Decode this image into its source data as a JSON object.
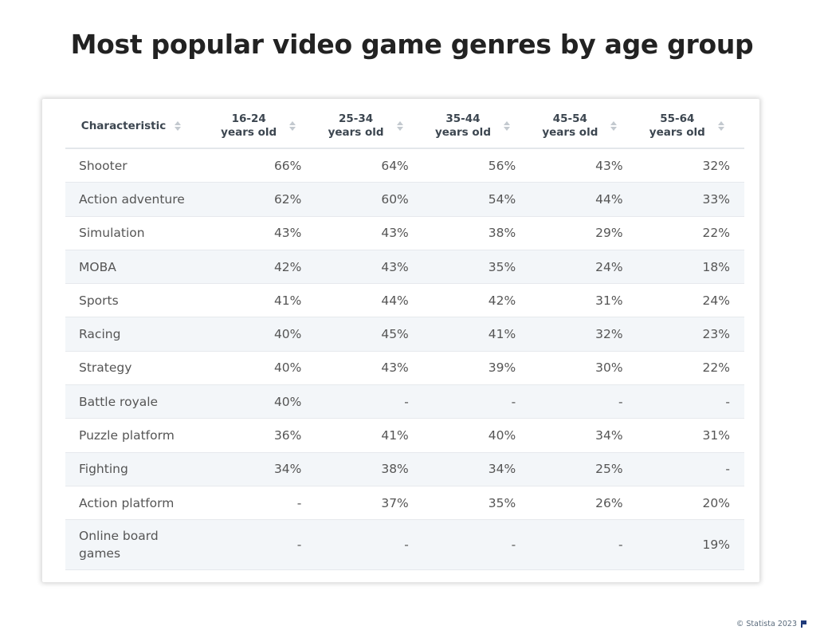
{
  "title": "Most popular video game genres by age group",
  "footer": "© Statista 2023",
  "chart_data": {
    "type": "table",
    "title": "Most popular video game genres by age group",
    "columns": [
      "Characteristic",
      "16-24 years old",
      "25-34 years old",
      "35-44 years old",
      "45-54 years old",
      "55-64 years old"
    ],
    "rows": [
      {
        "genre": "Shooter",
        "values": [
          "66%",
          "64%",
          "56%",
          "43%",
          "32%"
        ]
      },
      {
        "genre": "Action adventure",
        "values": [
          "62%",
          "60%",
          "54%",
          "44%",
          "33%"
        ]
      },
      {
        "genre": "Simulation",
        "values": [
          "43%",
          "43%",
          "38%",
          "29%",
          "22%"
        ]
      },
      {
        "genre": "MOBA",
        "values": [
          "42%",
          "43%",
          "35%",
          "24%",
          "18%"
        ]
      },
      {
        "genre": "Sports",
        "values": [
          "41%",
          "44%",
          "42%",
          "31%",
          "24%"
        ]
      },
      {
        "genre": "Racing",
        "values": [
          "40%",
          "45%",
          "41%",
          "32%",
          "23%"
        ]
      },
      {
        "genre": "Strategy",
        "values": [
          "40%",
          "43%",
          "39%",
          "30%",
          "22%"
        ]
      },
      {
        "genre": "Battle royale",
        "values": [
          "40%",
          "-",
          "-",
          "-",
          "-"
        ]
      },
      {
        "genre": "Puzzle platform",
        "values": [
          "36%",
          "41%",
          "40%",
          "34%",
          "31%"
        ]
      },
      {
        "genre": "Fighting",
        "values": [
          "34%",
          "38%",
          "34%",
          "25%",
          "-"
        ]
      },
      {
        "genre": "Action platform",
        "values": [
          "-",
          "37%",
          "35%",
          "26%",
          "20%"
        ]
      },
      {
        "genre": "Online board games",
        "values": [
          "-",
          "-",
          "-",
          "-",
          "19%"
        ]
      }
    ]
  }
}
